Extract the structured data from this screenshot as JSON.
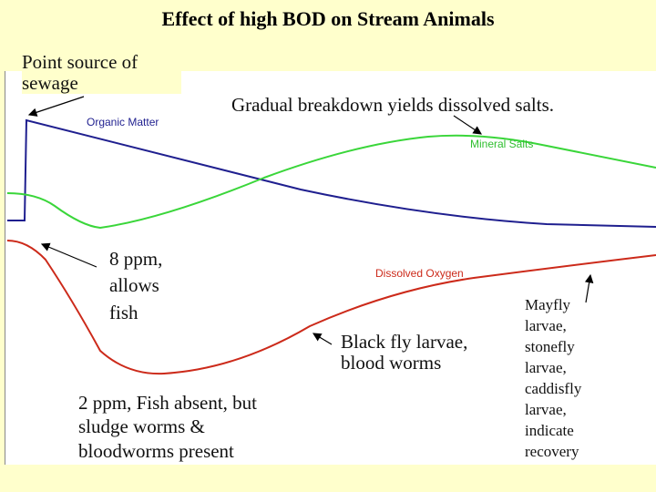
{
  "title": "Effect of high BOD on Stream Animals",
  "colors": {
    "background": "#ffffcc",
    "panel": "#ffffff",
    "organic_matter": "#1f1f8f",
    "mineral_salts": "#3ad63a",
    "dissolved_oxygen": "#cc2a1a"
  },
  "curves": {
    "organic_matter_label": "Organic Matter",
    "mineral_salts_label": "Mineral Salts",
    "dissolved_oxygen_label": "Dissolved Oxygen"
  },
  "annotations": {
    "point_source": "Point source of sewage",
    "gradual_breakdown": "Gradual breakdown yields dissolved salts.",
    "eight_ppm": "8 ppm, allows fish",
    "black_fly": "Black fly larvae, blood worms",
    "two_ppm": "2 ppm, Fish absent, but sludge worms & bloodworms present",
    "mayfly": "Mayfly larvae, stonefly larvae, caddisfly larvae, indicate recovery"
  }
}
